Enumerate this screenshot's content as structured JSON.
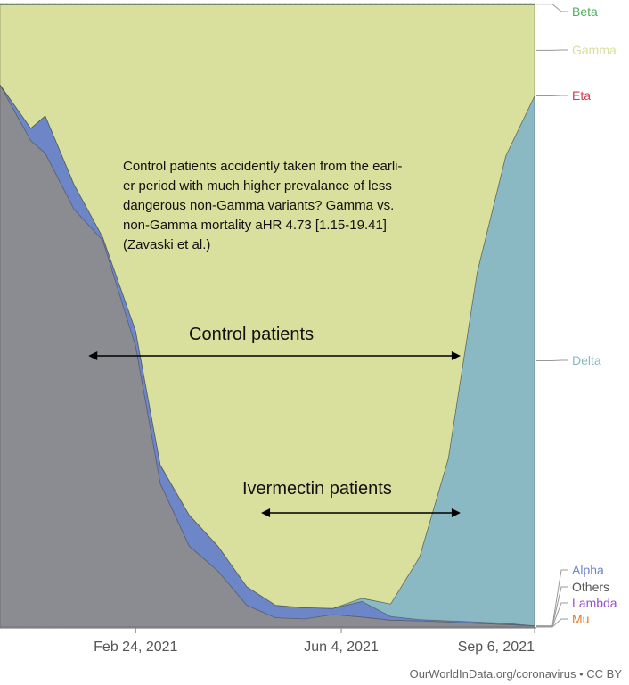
{
  "chart_data": {
    "type": "area",
    "stacked": true,
    "normalized": true,
    "title": "",
    "xlabel": "",
    "ylabel": "",
    "x_ticks": [
      "Feb 24, 2021",
      "Jun 4, 2021",
      "Sep 6, 2021"
    ],
    "x": [
      "2020-12-20",
      "2021-01-04",
      "2021-01-11",
      "2021-01-25",
      "2021-02-08",
      "2021-02-24",
      "2021-03-08",
      "2021-03-22",
      "2021-04-05",
      "2021-04-19",
      "2021-05-03",
      "2021-05-17",
      "2021-05-31",
      "2021-06-14",
      "2021-06-28",
      "2021-07-12",
      "2021-07-26",
      "2021-08-09",
      "2021-08-23",
      "2021-09-06"
    ],
    "ylim": [
      0,
      100
    ],
    "series": [
      {
        "name": "Mu",
        "color": "#e07b28",
        "values": [
          0,
          0,
          0,
          0,
          0,
          0,
          0,
          0,
          0,
          0,
          0,
          0,
          0,
          0,
          0,
          0,
          0,
          0,
          0,
          0
        ]
      },
      {
        "name": "Lambda",
        "color": "#9a4fc9",
        "values": [
          0,
          0,
          0,
          0,
          0,
          0,
          0,
          0,
          0,
          0,
          0,
          0,
          0,
          0,
          0,
          0,
          0,
          0,
          0,
          0
        ]
      },
      {
        "name": "Others",
        "color": "#8b8b92",
        "values": [
          87,
          78,
          76,
          67,
          62,
          45,
          23,
          13,
          9,
          3.5,
          1.5,
          1.3,
          2,
          1.6,
          1.1,
          1.0,
          0.8,
          0.6,
          0.4,
          0.2
        ]
      },
      {
        "name": "Alpha",
        "color": "#6d86c8",
        "values": [
          0,
          2,
          6,
          4,
          0.5,
          2.5,
          3,
          5,
          4,
          3,
          2,
          1.8,
          1,
          2.5,
          0.6,
          0.2,
          0.2,
          0.2,
          0.2,
          0
        ]
      },
      {
        "name": "Delta",
        "color": "#8ab9c4",
        "values": [
          0,
          0,
          0,
          0,
          0,
          0,
          0,
          0,
          0,
          0,
          0,
          0,
          0,
          0.5,
          2,
          10,
          26,
          56,
          75,
          85
        ]
      },
      {
        "name": "Eta",
        "color": "#d23a4b",
        "values": [
          0,
          0,
          0,
          0,
          0,
          0,
          0,
          0,
          0,
          0,
          0,
          0,
          0,
          0,
          0,
          0,
          0,
          0,
          0,
          0
        ]
      },
      {
        "name": "Gamma",
        "color": "#d9df9c",
        "values": [
          12.8,
          19.8,
          17.8,
          28.8,
          37.3,
          52.3,
          73.8,
          81.8,
          86.8,
          93.3,
          96.3,
          96.7,
          96.8,
          95.2,
          96.1,
          88.6,
          72.8,
          43.0,
          24.2,
          14.6
        ]
      },
      {
        "name": "Beta",
        "color": "#4fae5c",
        "values": [
          0.2,
          0.2,
          0.2,
          0.2,
          0.2,
          0.2,
          0.2,
          0.2,
          0.2,
          0.2,
          0.2,
          0.2,
          0.2,
          0.2,
          0.2,
          0.2,
          0.2,
          0.2,
          0.2,
          0.2
        ]
      }
    ],
    "legend": [
      "Beta",
      "Gamma",
      "Eta",
      "Delta",
      "Alpha",
      "Others",
      "Lambda",
      "Mu"
    ],
    "legend_placement": "right",
    "grid": true,
    "annotations": {
      "note": "Control patients accidently taken from the earli-\ner period with much higher prevalance of less\ndangerous non-Gamma variants? Gamma vs.\nnon-Gamma mortality aHR 4.73 [1.15-19.41]\n(Zavaski et al.)",
      "control_label": "Control patients",
      "ivermectin_label": "Ivermectin patients",
      "control_range": [
        "2021-02-01",
        "2021-08-01"
      ],
      "ivermectin_range": [
        "2021-04-26",
        "2021-08-01"
      ]
    }
  },
  "source": "OurWorldInData.org/coronavirus • CC BY"
}
